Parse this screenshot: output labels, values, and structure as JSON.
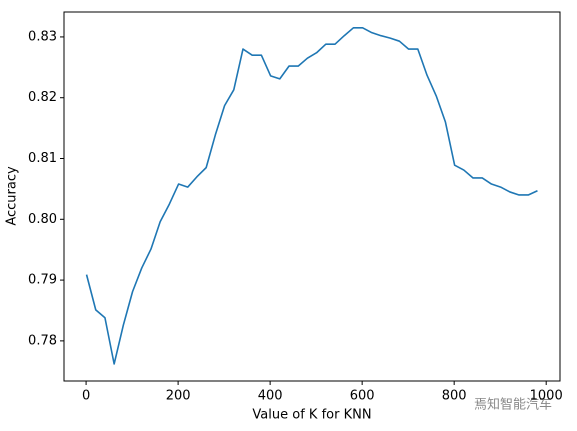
{
  "chart_data": {
    "type": "line",
    "xlabel": "Value of K for KNN",
    "ylabel": "Accuracy",
    "x": [
      1,
      21,
      41,
      61,
      81,
      101,
      121,
      141,
      161,
      181,
      201,
      221,
      241,
      261,
      281,
      301,
      321,
      341,
      361,
      381,
      401,
      421,
      441,
      461,
      481,
      501,
      521,
      541,
      561,
      581,
      601,
      621,
      641,
      661,
      681,
      701,
      721,
      741,
      761,
      781,
      801,
      821,
      841,
      861,
      881,
      901,
      921,
      941,
      961,
      981
    ],
    "series": [
      {
        "name": "Accuracy",
        "color": "#1f77b4",
        "values": [
          0.7909,
          0.7851,
          0.7838,
          0.7762,
          0.7826,
          0.7881,
          0.792,
          0.7951,
          0.7996,
          0.8025,
          0.8058,
          0.8053,
          0.807,
          0.8085,
          0.8139,
          0.8187,
          0.8213,
          0.828,
          0.827,
          0.827,
          0.8236,
          0.8231,
          0.8252,
          0.8252,
          0.8265,
          0.8274,
          0.8288,
          0.8288,
          0.8302,
          0.8315,
          0.8315,
          0.8307,
          0.8302,
          0.8298,
          0.8293,
          0.828,
          0.828,
          0.8237,
          0.8203,
          0.816,
          0.8089,
          0.8081,
          0.8068,
          0.8068,
          0.8058,
          0.8053,
          0.8045,
          0.804,
          0.804,
          0.8047
        ]
      }
    ],
    "xlim": [
      -48,
      1030
    ],
    "xticks": [
      0,
      200,
      400,
      600,
      800,
      1000
    ],
    "ylim": [
      0.7734,
      0.8341
    ],
    "yticks": [
      0.78,
      0.79,
      {
        "value": 0.8,
        "label": "0.80"
      },
      0.81,
      0.82,
      0.83
    ],
    "grid": false
  },
  "watermark": "焉知智能汽车"
}
